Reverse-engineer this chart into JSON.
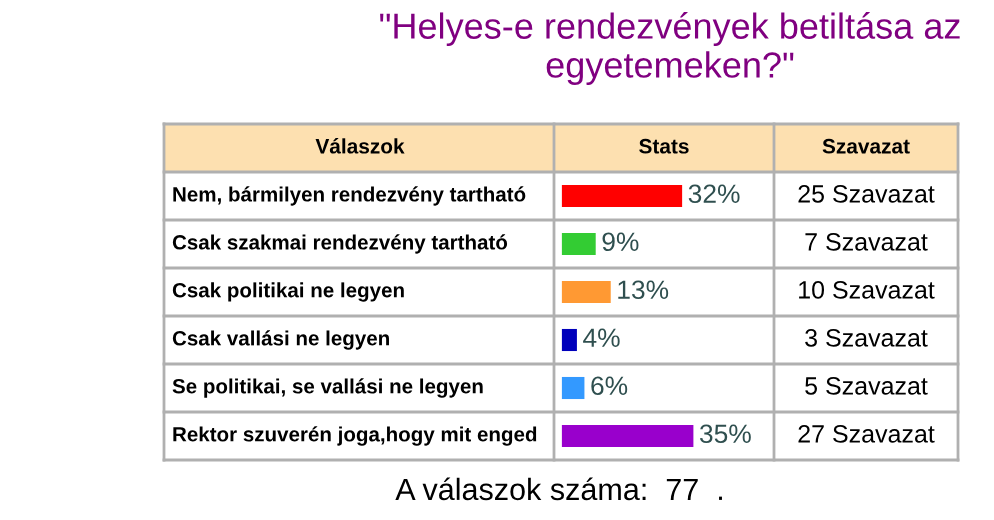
{
  "chart_data": {
    "type": "bar",
    "orientation": "horizontal",
    "title": "\"Helyes-e rendezvények betiltása az egyetemeken?\"",
    "categories": [
      "Nem, bármilyen rendezvény tartható",
      "Csak szakmai rendezvény tartható",
      "Csak politikai ne legyen",
      "Csak vallási ne legyen",
      "Se politikai, se vallási ne legyen",
      "Rektor szuverén joga,hogy mit enged"
    ],
    "values": [
      32,
      9,
      13,
      4,
      6,
      35
    ],
    "colors": [
      "#ff0000",
      "#33cc33",
      "#ff9933",
      "#0000bb",
      "#3399ff",
      "#9900cc"
    ],
    "value_labels": [
      "32%",
      "9%",
      "13%",
      "4%",
      "6%",
      "35%"
    ],
    "annotations": [
      "Válaszok",
      "Stats",
      "Szavazat",
      "25 Szavazat",
      "7 Szavazat",
      "10 Szavazat",
      "3 Szavazat",
      "5 Szavazat",
      "27 Szavazat",
      "A válaszok száma:  77  ."
    ]
  }
}
